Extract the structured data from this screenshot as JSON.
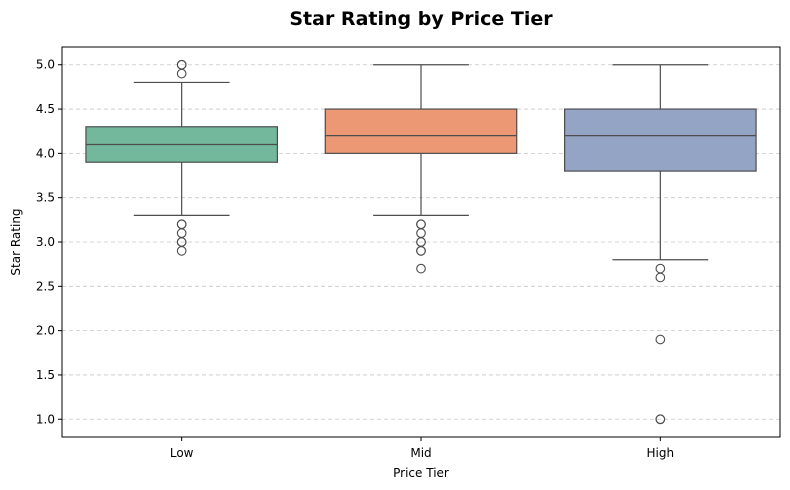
{
  "chart_data": {
    "type": "box",
    "title": "Star Rating by Price Tier",
    "xlabel": "Price Tier",
    "ylabel": "Star Rating",
    "ylim": [
      0.8,
      5.2
    ],
    "yticks": [
      "1.0",
      "1.5",
      "2.0",
      "2.5",
      "3.0",
      "3.5",
      "4.0",
      "4.5",
      "5.0"
    ],
    "grid": "y-dashed",
    "categories": [
      "Low",
      "Mid",
      "High"
    ],
    "boxes": [
      {
        "category": "Low",
        "color": "#73b79d",
        "whisker_low": 3.3,
        "q1": 3.9,
        "median": 4.1,
        "q3": 4.3,
        "whisker_high": 4.8,
        "outliers": [
          2.9,
          3.0,
          3.0,
          3.1,
          3.2,
          3.2,
          4.9,
          5.0,
          5.0
        ]
      },
      {
        "category": "Mid",
        "color": "#ec9875",
        "whisker_low": 3.3,
        "q1": 4.0,
        "median": 4.2,
        "q3": 4.5,
        "whisker_high": 5.0,
        "outliers": [
          2.7,
          2.9,
          2.9,
          3.0,
          3.0,
          3.1,
          3.2,
          3.2
        ]
      },
      {
        "category": "High",
        "color": "#94a4c5",
        "whisker_low": 2.8,
        "q1": 3.8,
        "median": 4.2,
        "q3": 4.5,
        "whisker_high": 5.0,
        "outliers": [
          1.0,
          1.0,
          1.9,
          2.6,
          2.7
        ]
      }
    ]
  }
}
